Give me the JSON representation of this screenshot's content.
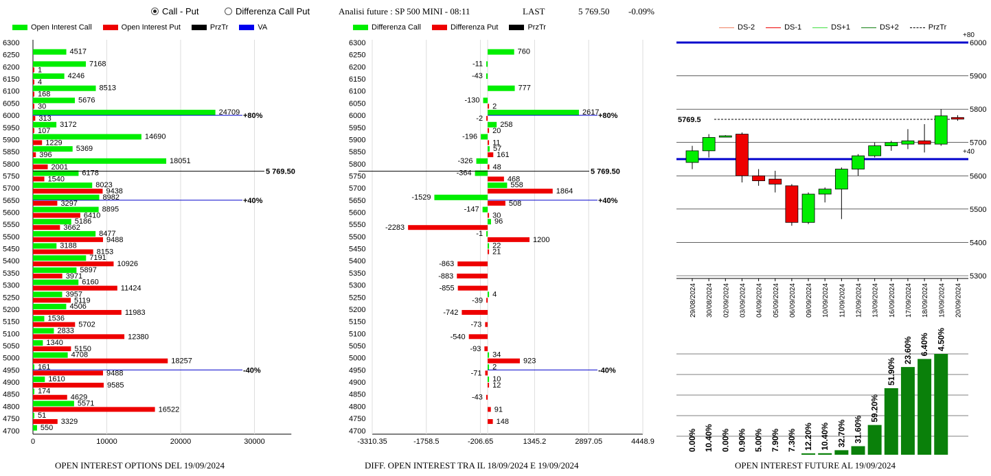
{
  "controls": {
    "radio_call_put": "Call - Put",
    "radio_diff": "Differenza Call Put",
    "selected": "call_put"
  },
  "header": {
    "analysis": "Analisi future : SP 500 MINI - 08:11",
    "last_label": "LAST",
    "last_value": "5 769.50",
    "last_change": "-0.09%"
  },
  "legend_left": [
    {
      "label": "Open Interest Call",
      "color": "#00ee00"
    },
    {
      "label": "Open Interest Put",
      "color": "#ee0000"
    },
    {
      "label": "PrzTr",
      "color": "#000000"
    },
    {
      "label": "VA",
      "color": "#0000ee"
    }
  ],
  "legend_mid": [
    {
      "label": "Differenza Call",
      "color": "#00ee00"
    },
    {
      "label": "Differenza Put",
      "color": "#ee0000"
    },
    {
      "label": "PrzTr",
      "color": "#000000"
    }
  ],
  "legend_right": [
    {
      "label": "DS-2",
      "color": "#f08060",
      "dash": false
    },
    {
      "label": "DS-1",
      "color": "#ee0000",
      "dash": false
    },
    {
      "label": "DS+1",
      "color": "#40e040",
      "dash": false
    },
    {
      "label": "DS+2",
      "color": "#108010",
      "dash": false
    },
    {
      "label": "PrzTr",
      "color": "#000000",
      "dash": true
    }
  ],
  "colors": {
    "green": "#00ee00",
    "red": "#ee0000",
    "blue": "#0000cc",
    "dark_green": "#0a800a"
  },
  "footers": {
    "left": "OPEN INTEREST OPTIONS DEL 19/09/2024",
    "mid": "DIFF. OPEN INTEREST TRA IL 18/09/2024 E 19/09/2024",
    "right": "OPEN INTEREST FUTURE AL 19/09/2024"
  },
  "chart_data": [
    {
      "type": "bar",
      "orientation": "horizontal",
      "strikes": [
        6300,
        6250,
        6200,
        6150,
        6100,
        6050,
        6000,
        5950,
        5900,
        5850,
        5800,
        5750,
        5700,
        5650,
        5600,
        5550,
        5500,
        5450,
        5400,
        5350,
        5300,
        5250,
        5200,
        5150,
        5100,
        5050,
        5000,
        4950,
        4900,
        4850,
        4800,
        4750,
        4700
      ],
      "series": [
        {
          "name": "Open Interest Call",
          "values": [
            null,
            4517,
            7168,
            4246,
            8513,
            5676,
            24709,
            3172,
            14690,
            5369,
            18051,
            6178,
            8023,
            8982,
            8895,
            5186,
            8477,
            3188,
            7191,
            5897,
            6160,
            3957,
            4506,
            1536,
            2833,
            1340,
            4708,
            161,
            1610,
            174,
            5571,
            51,
            550
          ]
        },
        {
          "name": "Open Interest Put",
          "values": [
            null,
            null,
            1,
            4,
            168,
            30,
            313,
            107,
            1229,
            396,
            2001,
            1540,
            9438,
            3297,
            6410,
            3662,
            9488,
            8153,
            10926,
            3971,
            11424,
            5119,
            11983,
            5702,
            12380,
            5150,
            18257,
            9488,
            9585,
            4629,
            16522,
            3329,
            null
          ]
        }
      ],
      "xlim": [
        0,
        35000
      ],
      "xticks": [
        "0",
        "10000",
        "20000",
        "30000"
      ],
      "ref_lines": [
        {
          "strike": 6000,
          "label": "+80%",
          "color": "#0000cc"
        },
        {
          "strike": 5769.5,
          "label": "5 769.50",
          "color": "#000000"
        },
        {
          "strike": 5650,
          "label": "+40%",
          "color": "#0000cc"
        },
        {
          "strike": 4950,
          "label": "-40%",
          "color": "#0000cc"
        }
      ]
    },
    {
      "type": "bar",
      "orientation": "horizontal",
      "strikes": [
        6300,
        6250,
        6200,
        6150,
        6100,
        6050,
        6000,
        5950,
        5900,
        5850,
        5800,
        5750,
        5700,
        5650,
        5600,
        5550,
        5500,
        5450,
        5400,
        5350,
        5300,
        5250,
        5200,
        5150,
        5100,
        5050,
        5000,
        4950,
        4900,
        4850,
        4800,
        4750,
        4700
      ],
      "series": [
        {
          "name": "Differenza Call",
          "values": [
            null,
            760,
            -11,
            -43,
            777,
            -130,
            2617,
            258,
            -196,
            57,
            -326,
            -364,
            558,
            -1529,
            -147,
            96,
            -1,
            22,
            null,
            null,
            null,
            4,
            null,
            null,
            null,
            null,
            34,
            2,
            10,
            null,
            null,
            null,
            null
          ]
        },
        {
          "name": "Differenza Put",
          "values": [
            null,
            null,
            null,
            null,
            null,
            2,
            -2,
            20,
            11,
            161,
            48,
            468,
            1864,
            508,
            30,
            -2283,
            1200,
            21,
            -863,
            -883,
            -855,
            -39,
            -742,
            -73,
            -540,
            -93,
            923,
            -71,
            12,
            -43,
            91,
            148,
            null
          ]
        }
      ],
      "xlim": [
        -3310.35,
        4448.9
      ],
      "xticks": [
        "-3310.35",
        "-1758.5",
        "-206.65",
        "1345.2",
        "2897.05",
        "4448.9"
      ],
      "ref_lines": [
        {
          "strike": 6000,
          "label": "+80%",
          "color": "#0000cc"
        },
        {
          "strike": 5769.5,
          "label": "5 769.50",
          "color": "#000000"
        },
        {
          "strike": 5650,
          "label": "+40%",
          "color": "#0000cc"
        },
        {
          "strike": 4950,
          "label": "-40%",
          "color": "#0000cc"
        }
      ]
    },
    {
      "type": "candlestick",
      "dates": [
        "29/08/2024",
        "30/08/2024",
        "02/09/2024",
        "03/09/2024",
        "04/09/2024",
        "05/09/2024",
        "06/09/2024",
        "09/09/2024",
        "10/09/2024",
        "11/09/2024",
        "12/09/2024",
        "13/09/2024",
        "16/09/2024",
        "17/09/2024",
        "18/09/2024",
        "19/09/2024",
        "20/09/2024"
      ],
      "ohlc": [
        [
          5640,
          5690,
          5620,
          5675
        ],
        [
          5675,
          5725,
          5655,
          5715
        ],
        [
          5720,
          5722,
          5718,
          5720
        ],
        [
          5725,
          5730,
          5580,
          5600
        ],
        [
          5600,
          5620,
          5570,
          5585
        ],
        [
          5590,
          5615,
          5550,
          5575
        ],
        [
          5570,
          5575,
          5450,
          5460
        ],
        [
          5460,
          5550,
          5455,
          5545
        ],
        [
          5545,
          5565,
          5520,
          5560
        ],
        [
          5560,
          5625,
          5470,
          5620
        ],
        [
          5620,
          5665,
          5600,
          5660
        ],
        [
          5660,
          5700,
          5655,
          5690
        ],
        [
          5690,
          5705,
          5675,
          5700
        ],
        [
          5695,
          5740,
          5680,
          5705
        ],
        [
          5705,
          5755,
          5670,
          5695
        ],
        [
          5695,
          5800,
          5690,
          5780
        ],
        [
          5775,
          5782,
          5765,
          5770
        ]
      ],
      "ylim": [
        5300,
        6000
      ],
      "yticks": [
        "5300",
        "5400",
        "5500",
        "5600",
        "5700",
        "5800",
        "5900",
        "6000"
      ],
      "last_label": "5769.5",
      "last_value": 5769.5,
      "ref_lines": [
        {
          "value": 6000,
          "label": "+80",
          "color": "#0000cc"
        },
        {
          "value": 5650,
          "label": "+40",
          "color": "#0000cc"
        }
      ]
    },
    {
      "type": "bar",
      "categories": [
        "29/08/2024",
        "30/08/2024",
        "02/09/2024",
        "03/09/2024",
        "04/09/2024",
        "05/09/2024",
        "06/09/2024",
        "09/09/2024",
        "10/09/2024",
        "11/09/2024",
        "12/09/2024",
        "13/09/2024",
        "16/09/2024",
        "17/09/2024",
        "18/09/2024",
        "19/09/2024",
        "20/09/2024"
      ],
      "values": [
        0.0,
        10.4,
        0.0,
        0.9,
        5.0,
        7.9,
        7.3,
        12.2,
        10.4,
        32.7,
        31.6,
        59.2,
        51.9,
        23.6,
        6.4,
        4.5,
        null
      ],
      "labels": [
        "0.00%",
        "10.40%",
        "0.00%",
        "0.90%",
        "5.00%",
        "7.90%",
        "7.30%",
        "12.20%",
        "10.40%",
        "32.70%",
        "31.60%",
        "59.20%",
        "51.90%",
        "23.60%",
        "6.40%",
        "4.50%",
        ""
      ],
      "heights_pct": [
        0,
        0,
        0,
        0,
        0,
        0,
        0,
        0.5,
        1.5,
        4.5,
        8.5,
        29.5,
        66,
        87,
        95,
        100,
        null
      ]
    }
  ]
}
